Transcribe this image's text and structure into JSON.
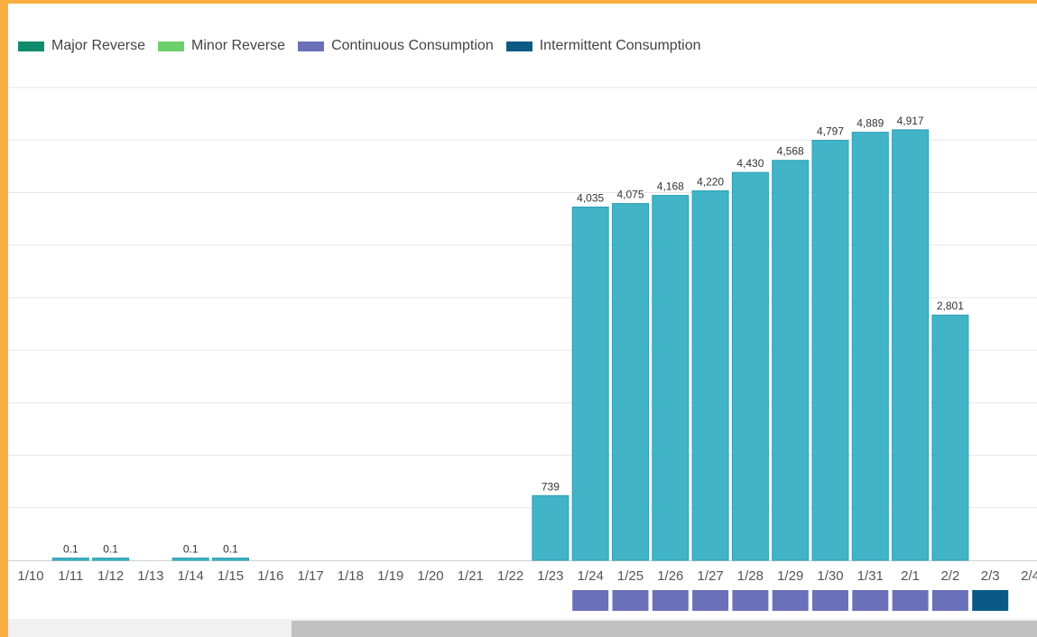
{
  "legend": [
    {
      "label": "Major Reverse",
      "color": "#0f8a6e"
    },
    {
      "label": "Minor Reverse",
      "color": "#6ccf6c"
    },
    {
      "label": "Continuous Consumption",
      "color": "#6a71b8"
    },
    {
      "label": "Intermittent Consumption",
      "color": "#0b5a86"
    }
  ],
  "chart_data": {
    "type": "bar",
    "title": "",
    "xlabel": "",
    "ylabel": "",
    "ylim": [
      0,
      5400
    ],
    "grid": true,
    "legend_position": "top-left",
    "bar_color": "#41b4c8",
    "categories": [
      "1/10",
      "1/11",
      "1/12",
      "1/13",
      "1/14",
      "1/15",
      "1/16",
      "1/17",
      "1/18",
      "1/19",
      "1/20",
      "1/21",
      "1/22",
      "1/23",
      "1/24",
      "1/25",
      "1/26",
      "1/27",
      "1/28",
      "1/29",
      "1/30",
      "1/31",
      "2/1",
      "2/2",
      "2/3",
      "2/4"
    ],
    "values": [
      null,
      0.1,
      0.1,
      null,
      0.1,
      0.1,
      null,
      null,
      null,
      null,
      null,
      null,
      null,
      739,
      4035,
      4075,
      4168,
      4220,
      4430,
      4568,
      4797,
      4889,
      4917,
      2801,
      null,
      null
    ],
    "labels": [
      "",
      "0.1",
      "0.1",
      "",
      "0.1",
      "0.1",
      "",
      "",
      "",
      "",
      "",
      "",
      "",
      "739",
      "4,035",
      "4,075",
      "4,168",
      "4,220",
      "4,430",
      "4,568",
      "4,797",
      "4,889",
      "4,917",
      "2,801",
      "",
      ""
    ],
    "status_strip": [
      "",
      "",
      "",
      "",
      "",
      "",
      "",
      "",
      "",
      "",
      "",
      "",
      "",
      "",
      "Continuous Consumption",
      "Continuous Consumption",
      "Continuous Consumption",
      "Continuous Consumption",
      "Continuous Consumption",
      "Continuous Consumption",
      "Continuous Consumption",
      "Continuous Consumption",
      "Continuous Consumption",
      "Continuous Consumption",
      "Intermittent Consumption",
      ""
    ]
  }
}
